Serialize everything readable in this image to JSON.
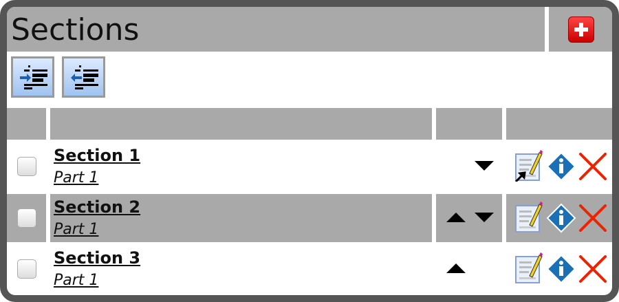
{
  "header": {
    "title": "Sections",
    "add_icon": "plus-icon"
  },
  "toolbar": [
    {
      "icon": "indent-icon"
    },
    {
      "icon": "outdent-icon"
    }
  ],
  "rows": [
    {
      "name": "Section 1",
      "part": "Part 1",
      "up": false,
      "down": true
    },
    {
      "name": "Section 2",
      "part": "Part 1",
      "up": true,
      "down": true
    },
    {
      "name": "Section 3",
      "part": "Part 1",
      "up": true,
      "down": false
    }
  ],
  "colors": {
    "header_gray": "#a9a9a9",
    "frame": "#555555",
    "delete": "#ee2200",
    "info": "#1a6fb5"
  }
}
